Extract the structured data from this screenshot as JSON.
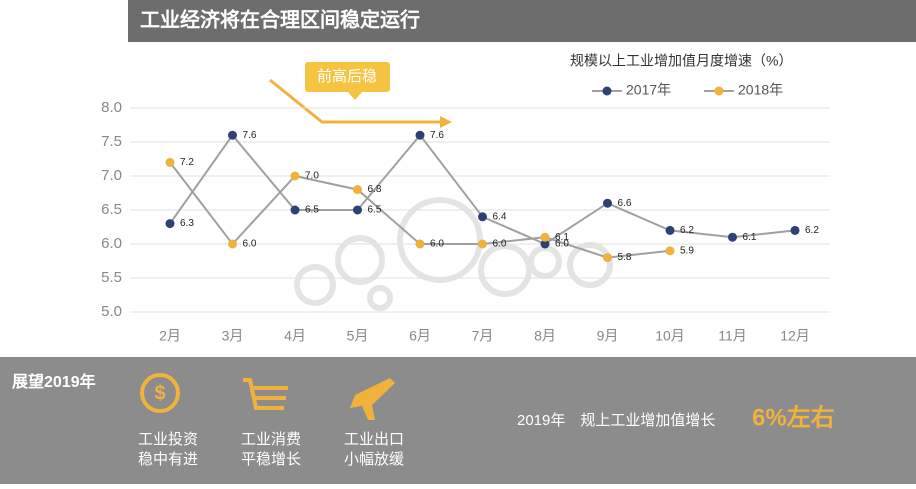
{
  "chart_data": {
    "type": "line",
    "title": "工业经济将在合理区间稳定运行",
    "subtitle": "规模以上工业增加值月度增速（%）",
    "annotation": "前高后稳",
    "categories": [
      "2月",
      "3月",
      "4月",
      "5月",
      "6月",
      "7月",
      "8月",
      "9月",
      "10月",
      "11月",
      "12月"
    ],
    "series": [
      {
        "name": "2017年",
        "color": "#2f4173",
        "values": [
          6.3,
          7.6,
          6.5,
          6.5,
          7.6,
          6.4,
          6.0,
          6.6,
          6.2,
          6.1,
          6.2
        ],
        "value_labels": [
          "6.3",
          "7.6",
          "6.5",
          "6.5",
          "7.6",
          "6.4",
          "6.0",
          "6.6",
          "6.2",
          "6.1",
          "6.2"
        ]
      },
      {
        "name": "2018年",
        "color": "#f0b23c",
        "values": [
          7.2,
          6.0,
          7.0,
          6.8,
          6.0,
          6.0,
          6.1,
          5.8,
          5.9,
          null,
          null
        ],
        "value_labels": [
          "7.2",
          "6.0",
          "7.0",
          "6.8",
          "6.0",
          "6.0",
          "6.1",
          "5.8",
          "5.9",
          null,
          null
        ]
      }
    ],
    "line_color": "#a0a0a0",
    "ylim": [
      5,
      8
    ],
    "yticks": [
      {
        "value": 5,
        "label": "5.0"
      },
      {
        "value": 5.5,
        "label": "5.5"
      },
      {
        "value": 6,
        "label": "6.0"
      },
      {
        "value": 6.5,
        "label": "6.5"
      },
      {
        "value": 7,
        "label": "7.0"
      },
      {
        "value": 7.5,
        "label": "7.5"
      },
      {
        "value": 8,
        "label": "8.0"
      }
    ],
    "grid": true
  },
  "footer": {
    "heading": "展望2019年",
    "items": [
      [
        "工业投资",
        "稳中有进"
      ],
      [
        "工业消费",
        "平稳增长"
      ],
      [
        "工业出口",
        "小幅放缓"
      ]
    ],
    "forecast_label": "2019年　规上工业增加值增长",
    "forecast_value": "6%左右"
  }
}
